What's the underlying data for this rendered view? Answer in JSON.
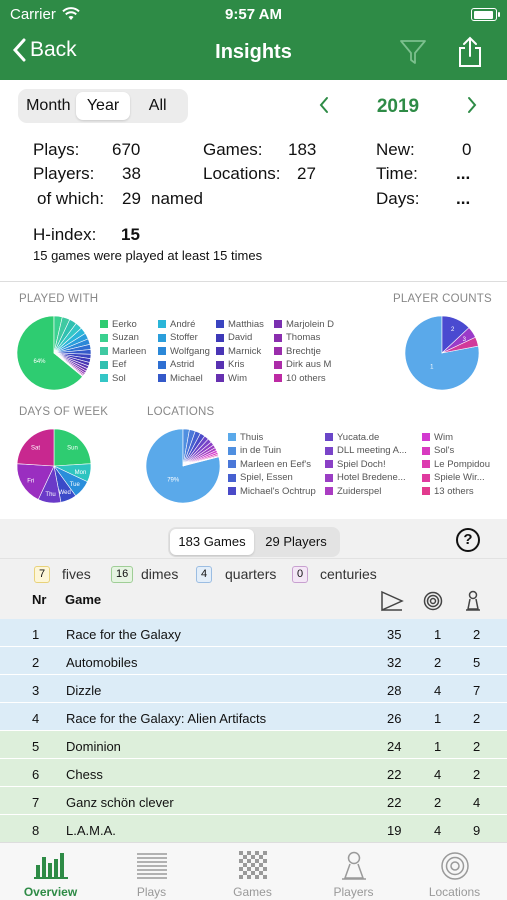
{
  "status": {
    "carrier": "Carrier",
    "time": "9:57 AM"
  },
  "nav": {
    "back_label": "Back",
    "title": "Insights"
  },
  "range": {
    "month": "Month",
    "year": "Year",
    "all": "All",
    "selected": "Year"
  },
  "year": {
    "value": "2019"
  },
  "stats": {
    "plays_label": "Plays:",
    "plays_value": "670",
    "games_label": "Games:",
    "games_value": "183",
    "new_label": "New:",
    "new_value": "0",
    "players_label": "Players:",
    "players_value": "38",
    "locations_label": "Locations:",
    "locations_value": "27",
    "time_label": "Time:",
    "time_value": "...",
    "ofwhich_label": "of which:",
    "ofwhich_value": "29",
    "named_label": "named",
    "days_label": "Days:",
    "days_value": "...",
    "hindex_label": "H-index:",
    "hindex_value": "15",
    "hindex_sub": "15 games were played at least 15 times"
  },
  "played_with": {
    "label": "PLAYED WITH",
    "pie_label": "64%",
    "share": 0.64,
    "legend": [
      [
        "Eerko",
        "#2ecc71"
      ],
      [
        "Suzan",
        "#3ad18f"
      ],
      [
        "Marleen",
        "#40c9a2"
      ],
      [
        "Eef",
        "#30c0b0"
      ],
      [
        "Sol",
        "#34c6c6"
      ],
      [
        "André",
        "#2ab5d8"
      ],
      [
        "Stoffer",
        "#2a9edb"
      ],
      [
        "Wolfgang",
        "#2b88d8"
      ],
      [
        "Astrid",
        "#2e6fd2"
      ],
      [
        "Michael",
        "#3459c9"
      ],
      [
        "Matthias",
        "#3a44c0"
      ],
      [
        "David",
        "#3d39b8"
      ],
      [
        "Marnick",
        "#4a35b5"
      ],
      [
        "Kris",
        "#5832b2"
      ],
      [
        "Wim",
        "#6630b0"
      ],
      [
        "Marjolein D",
        "#7a2fb0"
      ],
      [
        "Thomas",
        "#8a2eae"
      ],
      [
        "Brechtje",
        "#9a2dab"
      ],
      [
        "Dirk aus M",
        "#ab2ba8"
      ],
      [
        "10 others",
        "#bd2aa4"
      ]
    ]
  },
  "player_counts": {
    "label": "PLAYER COUNTS",
    "slices": [
      {
        "label": "1",
        "value": 78,
        "color": "#5aa9ea"
      },
      {
        "label": "2",
        "value": 13,
        "color": "#4a4ad0"
      },
      {
        "label": "3",
        "value": 5,
        "color": "#9a3ac8"
      },
      {
        "label": "",
        "value": 4,
        "color": "#d23a9a"
      }
    ]
  },
  "days_of_week": {
    "label": "DAYS OF WEEK",
    "slices": [
      {
        "label": "Sun",
        "value": 24,
        "color": "#2ecc71"
      },
      {
        "label": "Mon",
        "value": 8,
        "color": "#2ec4c0"
      },
      {
        "label": "Tue",
        "value": 8,
        "color": "#2a8edb"
      },
      {
        "label": "Wed",
        "value": 7,
        "color": "#3a4ac8"
      },
      {
        "label": "Thu",
        "value": 10,
        "color": "#6a3ac8"
      },
      {
        "label": "Fri",
        "value": 19,
        "color": "#9a2ec0"
      },
      {
        "label": "Sat",
        "value": 24,
        "color": "#c8288f"
      }
    ]
  },
  "locations": {
    "label": "LOCATIONS",
    "pie_label": "79%",
    "share": 0.79,
    "legend": [
      [
        "Thuis",
        "#5aa9ea"
      ],
      [
        "in de Tuin",
        "#4f8fe0"
      ],
      [
        "Marleen en Eef's",
        "#4a77d8"
      ],
      [
        "Spiel, Essen",
        "#4660d0"
      ],
      [
        "Michael's Ochtrup",
        "#4a4ac8"
      ],
      [
        "Yucata.de",
        "#6a46c8"
      ],
      [
        "DLL meeting A...",
        "#7a44c8"
      ],
      [
        "Spiel Doch!",
        "#8a40c6"
      ],
      [
        "Hotel Bredene...",
        "#9a3ec4"
      ],
      [
        "Zuiderspel",
        "#aa3cc2"
      ],
      [
        "Wim",
        "#d23ad0"
      ],
      [
        "Sol's",
        "#d83ac0"
      ],
      [
        "Le Pompidou",
        "#dd3ab0"
      ],
      [
        "Spiele Wir...",
        "#e03a9f"
      ],
      [
        "13 others",
        "#e23a8e"
      ]
    ]
  },
  "games_tabs": {
    "games": "183 Games",
    "players": "29 Players"
  },
  "badges": [
    {
      "count": "7",
      "label": "fives",
      "bg": "#fdf6d8",
      "border": "#e8d27a"
    },
    {
      "count": "16",
      "label": "dimes",
      "bg": "#e6f4e2",
      "border": "#9fce96"
    },
    {
      "count": "4",
      "label": "quarters",
      "bg": "#e3eef9",
      "border": "#9bbde2"
    },
    {
      "count": "0",
      "label": "centuries",
      "bg": "#f4e7f6",
      "border": "#c8a0d0"
    }
  ],
  "table": {
    "col_nr": "Nr",
    "col_game": "Game",
    "rows": [
      {
        "nr": "1",
        "game": "Race for the Galaxy",
        "plays": "35",
        "locations": "1",
        "players": "2",
        "tint": "blue"
      },
      {
        "nr": "2",
        "game": "Automobiles",
        "plays": "32",
        "locations": "2",
        "players": "5",
        "tint": "blue"
      },
      {
        "nr": "3",
        "game": "Dizzle",
        "plays": "28",
        "locations": "4",
        "players": "7",
        "tint": "blue"
      },
      {
        "nr": "4",
        "game": "Race for the Galaxy: Alien Artifacts",
        "plays": "26",
        "locations": "1",
        "players": "2",
        "tint": "blue"
      },
      {
        "nr": "5",
        "game": "Dominion",
        "plays": "24",
        "locations": "1",
        "players": "2",
        "tint": "green"
      },
      {
        "nr": "6",
        "game": "Chess",
        "plays": "22",
        "locations": "4",
        "players": "2",
        "tint": "green"
      },
      {
        "nr": "7",
        "game": "Ganz schön clever",
        "plays": "22",
        "locations": "2",
        "players": "4",
        "tint": "green"
      },
      {
        "nr": "8",
        "game": "L.A.M.A.",
        "plays": "19",
        "locations": "4",
        "players": "9",
        "tint": "green"
      }
    ]
  },
  "tabs": [
    {
      "label": "Overview",
      "icon": "bar-chart-icon",
      "active": true
    },
    {
      "label": "Plays",
      "icon": "list-icon",
      "active": false
    },
    {
      "label": "Games",
      "icon": "checkerboard-icon",
      "active": false
    },
    {
      "label": "Players",
      "icon": "pawn-icon",
      "active": false
    },
    {
      "label": "Locations",
      "icon": "target-icon",
      "active": false
    }
  ],
  "colors": {
    "accent": "#2e8b46"
  }
}
